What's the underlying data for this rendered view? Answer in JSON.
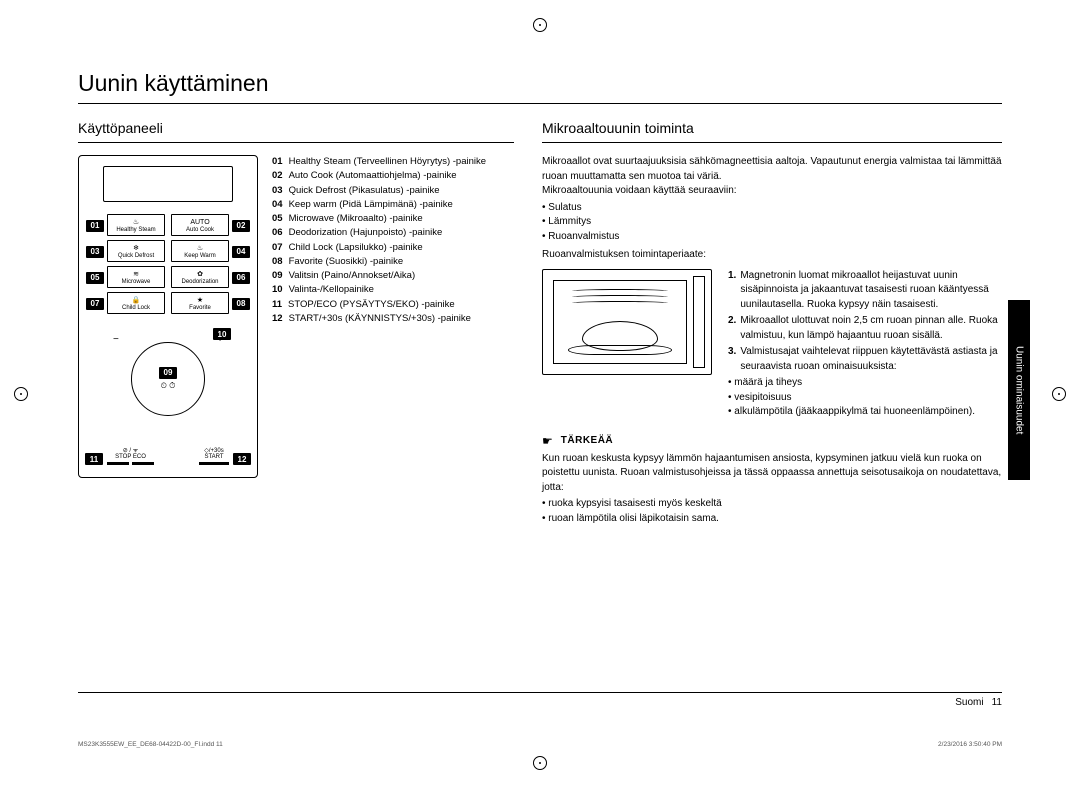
{
  "title": "Uunin käyttäminen",
  "side_tab": "Uunin ominaisuudet",
  "left": {
    "heading": "Käyttöpaneeli",
    "panel": {
      "buttons": [
        {
          "label": "Healthy Steam",
          "callout": "01",
          "side": "left"
        },
        {
          "label": "Auto Cook",
          "callout": "02",
          "side": "right"
        },
        {
          "label": "Quick Defrost",
          "callout": "03",
          "side": "left"
        },
        {
          "label": "Keep Warm",
          "callout": "04",
          "side": "right"
        },
        {
          "label": "Microwave",
          "callout": "05",
          "side": "left"
        },
        {
          "label": "Deodorization",
          "callout": "06",
          "side": "right"
        },
        {
          "label": "Child Lock",
          "callout": "07",
          "side": "left"
        },
        {
          "label": "Favorite",
          "callout": "08",
          "side": "right"
        }
      ],
      "dial_callout": "09",
      "dial_inner": "⏲ ⏱",
      "dial_top_callout": "10",
      "bottom_left": [
        {
          "icon": "⊘ / ᯤ",
          "label": "STOP  ECO"
        }
      ],
      "bottom_left_callout": "11",
      "bottom_right": [
        {
          "icon": "◇/+30s",
          "label": "START"
        }
      ],
      "bottom_right_callout": "12"
    },
    "legend": [
      {
        "num": "01",
        "txt": "Healthy Steam (Terveellinen Höyrytys) -painike"
      },
      {
        "num": "02",
        "txt": "Auto Cook (Automaattiohjelma) -painike"
      },
      {
        "num": "03",
        "txt": "Quick Defrost (Pikasulatus) -painike"
      },
      {
        "num": "04",
        "txt": "Keep warm (Pidä Lämpimänä) -painike"
      },
      {
        "num": "05",
        "txt": "Microwave (Mikroaalto) -painike"
      },
      {
        "num": "06",
        "txt": "Deodorization (Hajunpoisto) -painike"
      },
      {
        "num": "07",
        "txt": "Child Lock (Lapsilukko) -painike"
      },
      {
        "num": "08",
        "txt": "Favorite (Suosikki) -painike"
      },
      {
        "num": "09",
        "txt": "Valitsin (Paino/Annokset/Aika)"
      },
      {
        "num": "10",
        "txt": "Valinta-/Kellopainike"
      },
      {
        "num": "11",
        "txt": "STOP/ECO (PYSÄYTYS/EKO) -painike"
      },
      {
        "num": "12",
        "txt": "START/+30s (KÄYNNISTYS/+30s) -painike"
      }
    ]
  },
  "right": {
    "heading": "Mikroaaltouunin toiminta",
    "intro": "Mikroaallot ovat suurtaajuuksisia sähkömagneettisia aaltoja. Vapautunut energia valmistaa tai lämmittää ruoan muuttamatta sen muotoa tai väriä.",
    "uses_intro": "Mikroaaltouunia voidaan käyttää seuraaviin:",
    "uses": [
      "Sulatus",
      "Lämmitys",
      "Ruoanvalmistus"
    ],
    "principle_intro": "Ruoanvalmistuksen toimintaperiaate:",
    "principles": [
      {
        "n": "1.",
        "txt": "Magnetronin luomat mikroaallot heijastuvat uunin sisäpinnoista ja jakaantuvat tasaisesti ruoan kääntyessä uunilautasella. Ruoka kypsyy näin tasaisesti."
      },
      {
        "n": "2.",
        "txt": "Mikroaallot ulottuvat noin 2,5 cm ruoan pinnan alle. Ruoka valmistuu, kun lämpö hajaantuu ruoan sisällä."
      },
      {
        "n": "3.",
        "txt": "Valmistusajat vaihtelevat riippuen käytettävästä astiasta ja seuraavista ruoan ominaisuuksista:",
        "sub": [
          "määrä ja tiheys",
          "vesipitoisuus",
          "alkulämpötila (jääkaappikylmä tai huoneenlämpöinen)."
        ]
      }
    ],
    "important_label": "TÄRKEÄÄ",
    "important_text": "Kun ruoan keskusta kypsyy lämmön hajaantumisen ansiosta, kypsyminen jatkuu vielä kun ruoka on poistettu uunista. Ruoan valmistusohjeissa ja tässä oppaassa annettuja seisotusaikoja on noudatettava, jotta:",
    "important_bullets": [
      "ruoka kypsyisi tasaisesti myös keskeltä",
      "ruoan lämpötila olisi läpikotaisin sama."
    ]
  },
  "footer": {
    "lang": "Suomi",
    "page": "11"
  },
  "tiny": {
    "left": "MS23K3555EW_EE_DE68-04422D-00_FI.indd   11",
    "right": "2/23/2016   3:50:40 PM"
  }
}
